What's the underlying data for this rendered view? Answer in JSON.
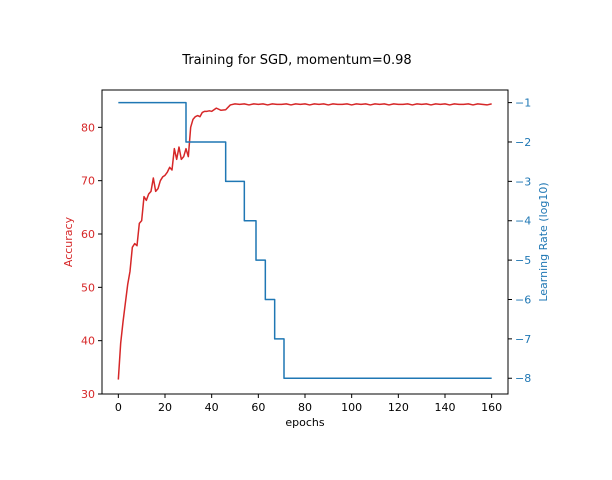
{
  "chart_data": {
    "type": "line",
    "title": "Training for SGD, momentum=0.98",
    "xlabel": "epochs",
    "ylabel_left": "Accuracy",
    "ylabel_right": "Learning Rate (log10)",
    "xlim": [
      -7,
      167
    ],
    "ylim_left": [
      30,
      87
    ],
    "ylim_right": [
      -8.4,
      -0.68
    ],
    "x_ticks": [
      0,
      20,
      40,
      60,
      80,
      100,
      120,
      140,
      160
    ],
    "y_ticks_left": [
      30,
      40,
      50,
      60,
      70,
      80
    ],
    "y_ticks_right": [
      -1,
      -2,
      -3,
      -4,
      -5,
      -6,
      -7,
      -8
    ],
    "grid": false,
    "colors": {
      "accuracy": "#d62728",
      "learning_rate": "#1f77b4"
    },
    "series": [
      {
        "axis": "left",
        "x": [
          0,
          1,
          2,
          3,
          4,
          5,
          6,
          7,
          8,
          9,
          10,
          11,
          12,
          13,
          14,
          15,
          16,
          17,
          18,
          19,
          20,
          21,
          22,
          23,
          24,
          25,
          26,
          27,
          28,
          29,
          30,
          31,
          32,
          33,
          34,
          35,
          36,
          37,
          38,
          39,
          40,
          42,
          44,
          46,
          48,
          50,
          52,
          54,
          56,
          58,
          60,
          62,
          64,
          66,
          68,
          70,
          72,
          74,
          76,
          78,
          80,
          82,
          84,
          86,
          88,
          90,
          92,
          94,
          96,
          98,
          100,
          102,
          104,
          106,
          108,
          110,
          112,
          114,
          116,
          118,
          120,
          122,
          124,
          126,
          128,
          130,
          132,
          134,
          136,
          138,
          140,
          142,
          144,
          146,
          148,
          150,
          152,
          154,
          156,
          158,
          160
        ],
        "values": [
          32.7,
          39.5,
          43.5,
          47.0,
          50.5,
          53.0,
          57.5,
          58.2,
          57.8,
          62.0,
          62.5,
          67.0,
          66.3,
          67.5,
          68.0,
          70.5,
          68.0,
          68.5,
          70.0,
          70.7,
          71.0,
          71.6,
          72.5,
          72.0,
          76.0,
          74.0,
          76.3,
          74.0,
          74.5,
          76.0,
          74.5,
          80.0,
          81.5,
          82.0,
          82.2,
          82.0,
          82.8,
          83.0,
          83.0,
          83.1,
          83.0,
          83.6,
          83.2,
          83.3,
          84.2,
          84.4,
          84.3,
          84.4,
          84.2,
          84.4,
          84.3,
          84.4,
          84.2,
          84.4,
          84.3,
          84.3,
          84.4,
          84.2,
          84.4,
          84.3,
          84.4,
          84.2,
          84.4,
          84.3,
          84.4,
          84.2,
          84.4,
          84.3,
          84.3,
          84.4,
          84.2,
          84.4,
          84.3,
          84.4,
          84.2,
          84.4,
          84.3,
          84.4,
          84.2,
          84.4,
          84.3,
          84.3,
          84.4,
          84.2,
          84.4,
          84.3,
          84.4,
          84.2,
          84.4,
          84.3,
          84.4,
          84.2,
          84.4,
          84.3,
          84.3,
          84.4,
          84.2,
          84.4,
          84.3,
          84.2,
          84.4
        ]
      },
      {
        "axis": "right",
        "step": true,
        "x": [
          0,
          29,
          29,
          46,
          46,
          54,
          54,
          59,
          59,
          63,
          63,
          67,
          67,
          71,
          71,
          160
        ],
        "values": [
          -1,
          -1,
          -2,
          -2,
          -3,
          -3,
          -4,
          -4,
          -5,
          -5,
          -6,
          -6,
          -7,
          -7,
          -8,
          -8
        ]
      }
    ]
  }
}
